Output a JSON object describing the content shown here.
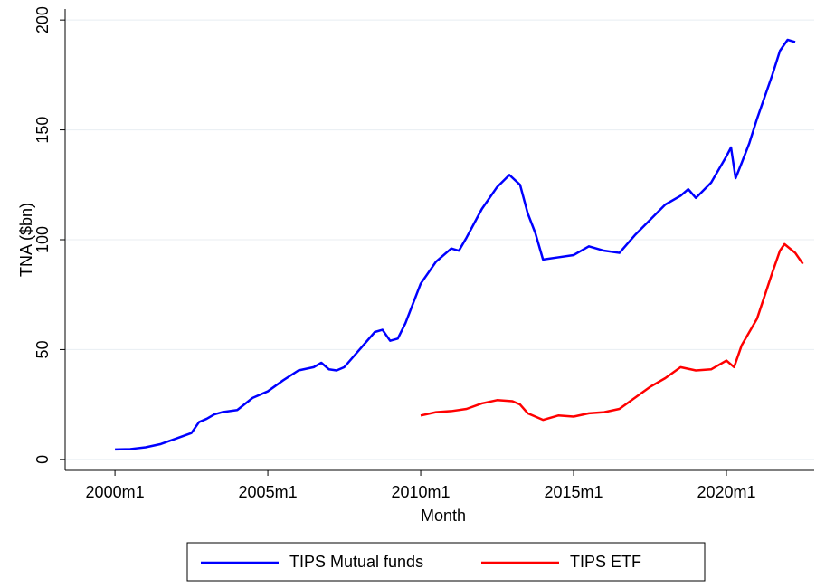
{
  "chart_data": {
    "type": "line",
    "xlabel": "Month",
    "ylabel": "TNA ($bn)",
    "xlim": [
      1998.37,
      2022.87
    ],
    "xticks": [
      {
        "value": 2000,
        "label": "2000m1"
      },
      {
        "value": 2005,
        "label": "2005m1"
      },
      {
        "value": 2010,
        "label": "2010m1"
      },
      {
        "value": 2015,
        "label": "2015m1"
      },
      {
        "value": 2020,
        "label": "2020m1"
      }
    ],
    "ylim": [
      -5,
      205
    ],
    "yticks": [
      0,
      50,
      100,
      150,
      200
    ],
    "grid": true,
    "legend": "bottom",
    "series": [
      {
        "name": "TIPS Mutual funds",
        "color": "#0000ff",
        "x": [
          2000.0,
          2000.5,
          2001.0,
          2001.5,
          2002.0,
          2002.5,
          2002.75,
          2003.0,
          2003.25,
          2003.5,
          2004.0,
          2004.5,
          2005.0,
          2005.5,
          2006.0,
          2006.5,
          2006.75,
          2007.0,
          2007.25,
          2007.5,
          2008.0,
          2008.5,
          2008.75,
          2009.0,
          2009.25,
          2009.5,
          2010.0,
          2010.5,
          2011.0,
          2011.25,
          2011.5,
          2012.0,
          2012.5,
          2012.9,
          2013.25,
          2013.5,
          2013.75,
          2014.0,
          2014.5,
          2015.0,
          2015.5,
          2016.0,
          2016.5,
          2017.0,
          2017.5,
          2018.0,
          2018.5,
          2018.75,
          2019.0,
          2019.5,
          2020.0,
          2020.15,
          2020.3,
          2020.5,
          2020.75,
          2021.0,
          2021.5,
          2021.75,
          2022.0,
          2022.25
        ],
        "values": [
          4.5,
          4.7,
          5.5,
          7,
          9.5,
          12,
          17,
          18.5,
          20.5,
          21.5,
          22.5,
          28,
          31,
          36,
          40.5,
          42,
          44,
          41,
          40.5,
          42,
          50,
          58,
          59,
          54,
          55,
          62,
          80,
          90,
          96,
          95,
          101,
          114,
          124,
          129.5,
          125,
          112,
          103,
          91,
          92,
          93,
          97,
          95,
          94,
          102,
          109,
          116,
          120,
          123,
          119,
          126,
          138,
          142,
          128,
          135,
          144,
          155,
          175,
          186,
          191,
          190
        ]
      },
      {
        "name": "TIPS ETF",
        "color": "#ff0000",
        "x": [
          2010.0,
          2010.5,
          2011.0,
          2011.5,
          2012.0,
          2012.5,
          2013.0,
          2013.25,
          2013.5,
          2014.0,
          2014.5,
          2015.0,
          2015.5,
          2016.0,
          2016.5,
          2017.0,
          2017.5,
          2018.0,
          2018.5,
          2019.0,
          2019.5,
          2020.0,
          2020.25,
          2020.5,
          2021.0,
          2021.5,
          2021.75,
          2021.9,
          2022.25,
          2022.5
        ],
        "values": [
          20,
          21.5,
          22,
          23,
          25.5,
          27,
          26.5,
          25,
          21,
          18,
          20,
          19.5,
          21,
          21.5,
          23,
          28,
          33,
          37,
          42,
          40.5,
          41,
          45,
          42,
          52,
          64,
          85,
          95,
          98,
          94,
          89
        ]
      }
    ]
  }
}
